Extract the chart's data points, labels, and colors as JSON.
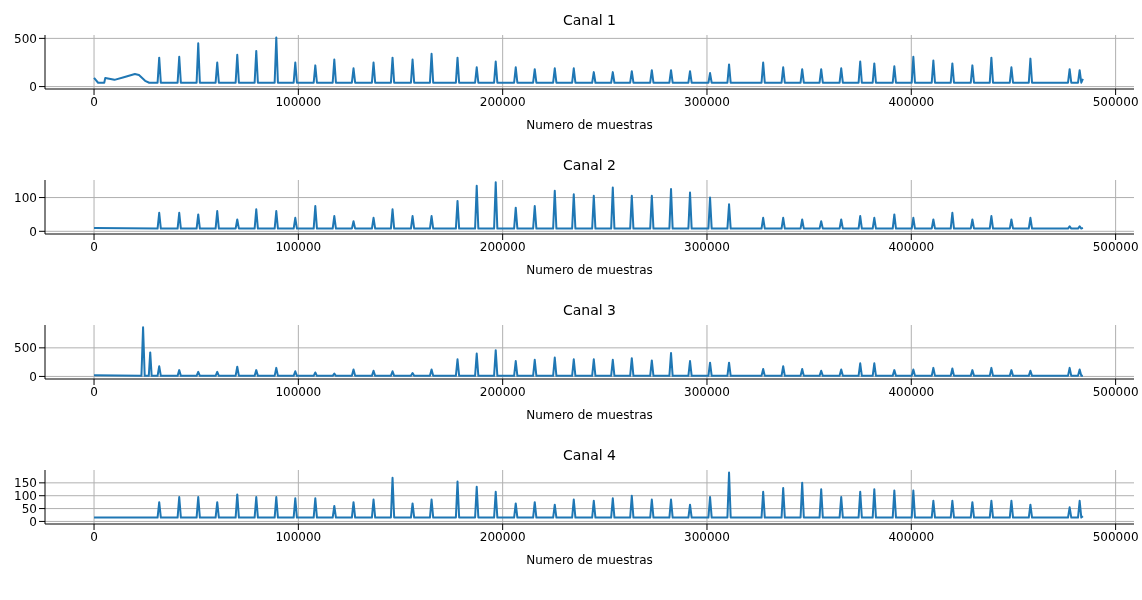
{
  "chart_data": [
    {
      "type": "line",
      "title": "Canal 1",
      "xlabel": "Numero de muestras",
      "color": "#1f77b4",
      "grid": true,
      "marker": "none",
      "line_style": "solid",
      "xlim": [
        -24000,
        509000
      ],
      "xticks": [
        0,
        100000,
        200000,
        300000,
        400000,
        500000
      ],
      "ylim": [
        -25,
        535
      ],
      "yticks": [
        0,
        500
      ],
      "x": [
        0,
        2000,
        5000,
        5500,
        10000,
        15000,
        20000,
        22000,
        25000,
        27000,
        31100,
        31900,
        32700,
        40900,
        41700,
        42500,
        50200,
        51000,
        51800,
        59500,
        60300,
        61100,
        69300,
        70100,
        70900,
        78600,
        79400,
        80200,
        88400,
        89200,
        90000,
        97700,
        98500,
        99300,
        107500,
        108300,
        109100,
        116800,
        117600,
        118400,
        126200,
        127000,
        127800,
        136000,
        136800,
        137600,
        145300,
        146100,
        146900,
        155100,
        155900,
        156700,
        164400,
        165200,
        166000,
        177100,
        177900,
        178700,
        186500,
        187300,
        188100,
        195800,
        196600,
        197400,
        205600,
        206400,
        207200,
        214900,
        215700,
        216500,
        224700,
        225500,
        226300,
        234000,
        234800,
        235600,
        243800,
        244600,
        245400,
        253100,
        253900,
        254700,
        262400,
        263200,
        264000,
        272200,
        273000,
        273800,
        281600,
        282400,
        283200,
        290900,
        291700,
        292500,
        300700,
        301500,
        302300,
        310000,
        310800,
        311600,
        326700,
        327500,
        328300,
        336500,
        337300,
        338100,
        345800,
        346600,
        347400,
        355100,
        355900,
        356700,
        364900,
        365700,
        366500,
        374200,
        375000,
        375800,
        381100,
        381900,
        382700,
        390900,
        391700,
        392500,
        400200,
        401000,
        401800,
        410000,
        410800,
        411600,
        419300,
        420100,
        420900,
        429100,
        429900,
        430700,
        438400,
        439200,
        440000,
        448200,
        449000,
        449800,
        457500,
        458300,
        459100,
        476700,
        477500,
        478300,
        481600,
        482400,
        483200,
        484000
      ],
      "values": [
        90,
        40,
        40,
        90,
        70,
        100,
        130,
        120,
        60,
        40,
        40,
        300,
        40,
        40,
        310,
        40,
        40,
        450,
        40,
        40,
        250,
        40,
        40,
        330,
        40,
        40,
        370,
        40,
        40,
        510,
        40,
        40,
        250,
        40,
        40,
        220,
        40,
        40,
        280,
        40,
        40,
        190,
        40,
        40,
        250,
        40,
        40,
        300,
        40,
        40,
        280,
        40,
        40,
        340,
        40,
        40,
        300,
        40,
        40,
        200,
        40,
        40,
        260,
        40,
        40,
        200,
        40,
        40,
        180,
        40,
        40,
        190,
        40,
        40,
        190,
        40,
        40,
        150,
        40,
        40,
        150,
        40,
        40,
        160,
        40,
        40,
        170,
        40,
        40,
        170,
        40,
        40,
        160,
        40,
        40,
        140,
        40,
        40,
        230,
        40,
        40,
        250,
        40,
        40,
        200,
        40,
        40,
        180,
        40,
        40,
        180,
        40,
        40,
        190,
        40,
        40,
        260,
        40,
        40,
        240,
        40,
        40,
        210,
        40,
        40,
        310,
        40,
        40,
        270,
        40,
        40,
        240,
        40,
        40,
        220,
        40,
        40,
        300,
        40,
        40,
        200,
        40,
        40,
        290,
        40,
        40,
        180,
        40,
        40,
        170,
        40,
        80
      ]
    },
    {
      "type": "line",
      "title": "Canal 2",
      "xlabel": "Numero de muestras",
      "color": "#1f77b4",
      "grid": true,
      "marker": "none",
      "line_style": "solid",
      "xlim": [
        -24000,
        509000
      ],
      "xticks": [
        0,
        100000,
        200000,
        300000,
        400000,
        500000
      ],
      "ylim": [
        -8,
        152
      ],
      "yticks": [
        0,
        100
      ],
      "x": [
        0,
        31100,
        31900,
        32700,
        40900,
        41700,
        42500,
        50200,
        51000,
        51800,
        59500,
        60300,
        61100,
        69300,
        70100,
        70900,
        78600,
        79400,
        80200,
        88400,
        89200,
        90000,
        97700,
        98500,
        99300,
        107500,
        108300,
        109100,
        116800,
        117600,
        118400,
        126200,
        127000,
        127800,
        136000,
        136800,
        137600,
        145300,
        146100,
        146900,
        155100,
        155900,
        156700,
        164400,
        165200,
        166000,
        177100,
        177900,
        178700,
        186500,
        187300,
        188100,
        195800,
        196600,
        197400,
        205600,
        206400,
        207200,
        214900,
        215700,
        216500,
        224700,
        225500,
        226300,
        234000,
        234800,
        235600,
        243800,
        244600,
        245400,
        253100,
        253900,
        254700,
        262400,
        263200,
        264000,
        272200,
        273000,
        273800,
        281600,
        282400,
        283200,
        290900,
        291700,
        292500,
        300700,
        301500,
        302300,
        310000,
        310800,
        311600,
        326700,
        327500,
        328300,
        336500,
        337300,
        338100,
        345800,
        346600,
        347400,
        355100,
        355900,
        356700,
        364900,
        365700,
        366500,
        374200,
        375000,
        375800,
        381100,
        381900,
        382700,
        390900,
        391700,
        392500,
        400200,
        401000,
        401800,
        410000,
        410800,
        411600,
        419300,
        420100,
        420900,
        429100,
        429900,
        430700,
        438400,
        439200,
        440000,
        448200,
        449000,
        449800,
        457500,
        458300,
        459100,
        476700,
        477500,
        478300,
        481600,
        482400,
        483200,
        484000
      ],
      "values": [
        10,
        8,
        55,
        8,
        8,
        55,
        8,
        8,
        50,
        8,
        8,
        60,
        8,
        8,
        35,
        8,
        8,
        65,
        8,
        8,
        60,
        8,
        8,
        40,
        8,
        8,
        75,
        8,
        8,
        45,
        8,
        8,
        30,
        8,
        8,
        40,
        8,
        8,
        65,
        8,
        8,
        45,
        8,
        8,
        45,
        8,
        8,
        90,
        8,
        8,
        135,
        8,
        8,
        145,
        8,
        8,
        70,
        8,
        8,
        75,
        8,
        8,
        120,
        8,
        8,
        110,
        8,
        8,
        105,
        8,
        8,
        130,
        8,
        8,
        105,
        8,
        8,
        105,
        8,
        8,
        125,
        8,
        8,
        115,
        8,
        8,
        100,
        8,
        8,
        80,
        8,
        8,
        40,
        8,
        8,
        40,
        8,
        8,
        35,
        8,
        8,
        30,
        8,
        8,
        35,
        8,
        8,
        45,
        8,
        8,
        40,
        8,
        8,
        50,
        8,
        8,
        40,
        8,
        8,
        35,
        8,
        8,
        55,
        8,
        8,
        35,
        8,
        8,
        45,
        8,
        8,
        35,
        8,
        8,
        40,
        8,
        8,
        15,
        8,
        8,
        15,
        8,
        10
      ]
    },
    {
      "type": "line",
      "title": "Canal 3",
      "xlabel": "Numero de muestras",
      "color": "#1f77b4",
      "grid": true,
      "marker": "none",
      "line_style": "solid",
      "xlim": [
        -24000,
        509000
      ],
      "xticks": [
        0,
        100000,
        200000,
        300000,
        400000,
        500000
      ],
      "ylim": [
        -45,
        900
      ],
      "yticks": [
        0,
        500
      ],
      "x": [
        0,
        23200,
        24000,
        24800,
        26800,
        27500,
        28200,
        31100,
        31900,
        32700,
        40900,
        41700,
        42500,
        50200,
        51000,
        51800,
        59500,
        60300,
        61100,
        69300,
        70100,
        70900,
        78600,
        79400,
        80200,
        88400,
        89200,
        90000,
        97700,
        98500,
        99300,
        107500,
        108300,
        109100,
        116800,
        117600,
        118400,
        126200,
        127000,
        127800,
        136000,
        136800,
        137600,
        145300,
        146100,
        146900,
        155100,
        155900,
        156700,
        164400,
        165200,
        166000,
        177100,
        177900,
        178700,
        186500,
        187300,
        188100,
        195800,
        196600,
        197400,
        205600,
        206400,
        207200,
        214900,
        215700,
        216500,
        224700,
        225500,
        226300,
        234000,
        234800,
        235600,
        243800,
        244600,
        245400,
        253100,
        253900,
        254700,
        262400,
        263200,
        264000,
        272200,
        273000,
        273800,
        281600,
        282400,
        283200,
        290900,
        291700,
        292500,
        300700,
        301500,
        302300,
        310000,
        310800,
        311600,
        326700,
        327500,
        328300,
        336500,
        337300,
        338100,
        345800,
        346600,
        347400,
        355100,
        355900,
        356700,
        364900,
        365700,
        366500,
        374200,
        375000,
        375800,
        381100,
        381900,
        382700,
        390900,
        391700,
        392500,
        400200,
        401000,
        401800,
        410000,
        410800,
        411600,
        419300,
        420100,
        420900,
        429100,
        429900,
        430700,
        438400,
        439200,
        440000,
        448200,
        449000,
        449800,
        457500,
        458300,
        459100,
        476700,
        477500,
        478300,
        481600,
        482400,
        483200,
        484000
      ],
      "values": [
        20,
        10,
        860,
        10,
        10,
        420,
        10,
        10,
        180,
        10,
        10,
        110,
        10,
        10,
        80,
        10,
        10,
        80,
        10,
        10,
        170,
        10,
        10,
        110,
        10,
        10,
        150,
        10,
        10,
        90,
        10,
        10,
        70,
        10,
        10,
        50,
        10,
        10,
        120,
        10,
        10,
        100,
        10,
        10,
        90,
        10,
        10,
        60,
        10,
        10,
        120,
        10,
        10,
        300,
        10,
        10,
        400,
        10,
        10,
        460,
        10,
        10,
        270,
        10,
        10,
        290,
        10,
        10,
        330,
        10,
        10,
        300,
        10,
        10,
        300,
        10,
        10,
        290,
        10,
        10,
        320,
        10,
        10,
        280,
        10,
        10,
        410,
        10,
        10,
        270,
        10,
        10,
        240,
        10,
        10,
        240,
        10,
        10,
        130,
        10,
        10,
        180,
        10,
        10,
        130,
        10,
        10,
        100,
        10,
        10,
        120,
        10,
        10,
        230,
        10,
        10,
        230,
        10,
        10,
        110,
        10,
        10,
        120,
        10,
        10,
        150,
        10,
        10,
        140,
        10,
        10,
        110,
        10,
        10,
        150,
        10,
        10,
        110,
        10,
        10,
        100,
        10,
        10,
        150,
        10,
        10,
        120,
        10,
        10
      ]
    },
    {
      "type": "line",
      "title": "Canal 4",
      "xlabel": "Numero de muestras",
      "color": "#1f77b4",
      "grid": true,
      "marker": "none",
      "line_style": "solid",
      "xlim": [
        -24000,
        509000
      ],
      "xticks": [
        0,
        100000,
        200000,
        300000,
        400000,
        500000
      ],
      "ylim": [
        -10,
        200
      ],
      "yticks": [
        0,
        50,
        100,
        150
      ],
      "x": [
        0,
        31100,
        31900,
        32700,
        40900,
        41700,
        42500,
        50200,
        51000,
        51800,
        59500,
        60300,
        61100,
        69300,
        70100,
        70900,
        78600,
        79400,
        80200,
        88400,
        89200,
        90000,
        97700,
        98500,
        99300,
        107500,
        108300,
        109100,
        116800,
        117600,
        118400,
        126200,
        127000,
        127800,
        136000,
        136800,
        137600,
        145300,
        146100,
        146900,
        155100,
        155900,
        156700,
        164400,
        165200,
        166000,
        177100,
        177900,
        178700,
        186500,
        187300,
        188100,
        195800,
        196600,
        197400,
        205600,
        206400,
        207200,
        214900,
        215700,
        216500,
        224700,
        225500,
        226300,
        234000,
        234800,
        235600,
        243800,
        244600,
        245400,
        253100,
        253900,
        254700,
        262400,
        263200,
        264000,
        272200,
        273000,
        273800,
        281600,
        282400,
        283200,
        290900,
        291700,
        292500,
        300700,
        301500,
        302300,
        310000,
        310800,
        311600,
        326700,
        327500,
        328300,
        336500,
        337300,
        338100,
        345800,
        346600,
        347400,
        355100,
        355900,
        356700,
        364900,
        365700,
        366500,
        374200,
        375000,
        375800,
        381100,
        381900,
        382700,
        390900,
        391700,
        392500,
        400200,
        401000,
        401800,
        410000,
        410800,
        411600,
        419300,
        420100,
        420900,
        429100,
        429900,
        430700,
        438400,
        439200,
        440000,
        448200,
        449000,
        449800,
        457500,
        458300,
        459100,
        476700,
        477500,
        478300,
        481600,
        482400,
        483200,
        484000
      ],
      "values": [
        15,
        15,
        75,
        15,
        15,
        95,
        15,
        15,
        95,
        15,
        15,
        75,
        15,
        15,
        105,
        15,
        15,
        95,
        15,
        15,
        95,
        15,
        15,
        90,
        15,
        15,
        90,
        15,
        15,
        60,
        15,
        15,
        75,
        15,
        15,
        85,
        15,
        15,
        170,
        15,
        15,
        70,
        15,
        15,
        85,
        15,
        15,
        155,
        15,
        15,
        135,
        15,
        15,
        115,
        15,
        15,
        70,
        15,
        15,
        75,
        15,
        15,
        65,
        15,
        15,
        85,
        15,
        15,
        80,
        15,
        15,
        90,
        15,
        15,
        100,
        15,
        15,
        85,
        15,
        15,
        85,
        15,
        15,
        65,
        15,
        15,
        95,
        15,
        15,
        190,
        15,
        15,
        115,
        15,
        15,
        130,
        15,
        15,
        150,
        15,
        15,
        125,
        15,
        15,
        95,
        15,
        15,
        115,
        15,
        15,
        125,
        15,
        15,
        120,
        15,
        15,
        120,
        15,
        15,
        80,
        15,
        15,
        80,
        15,
        15,
        75,
        15,
        15,
        80,
        15,
        15,
        80,
        15,
        15,
        65,
        15,
        15,
        55,
        15,
        15,
        80,
        15,
        20
      ]
    }
  ]
}
